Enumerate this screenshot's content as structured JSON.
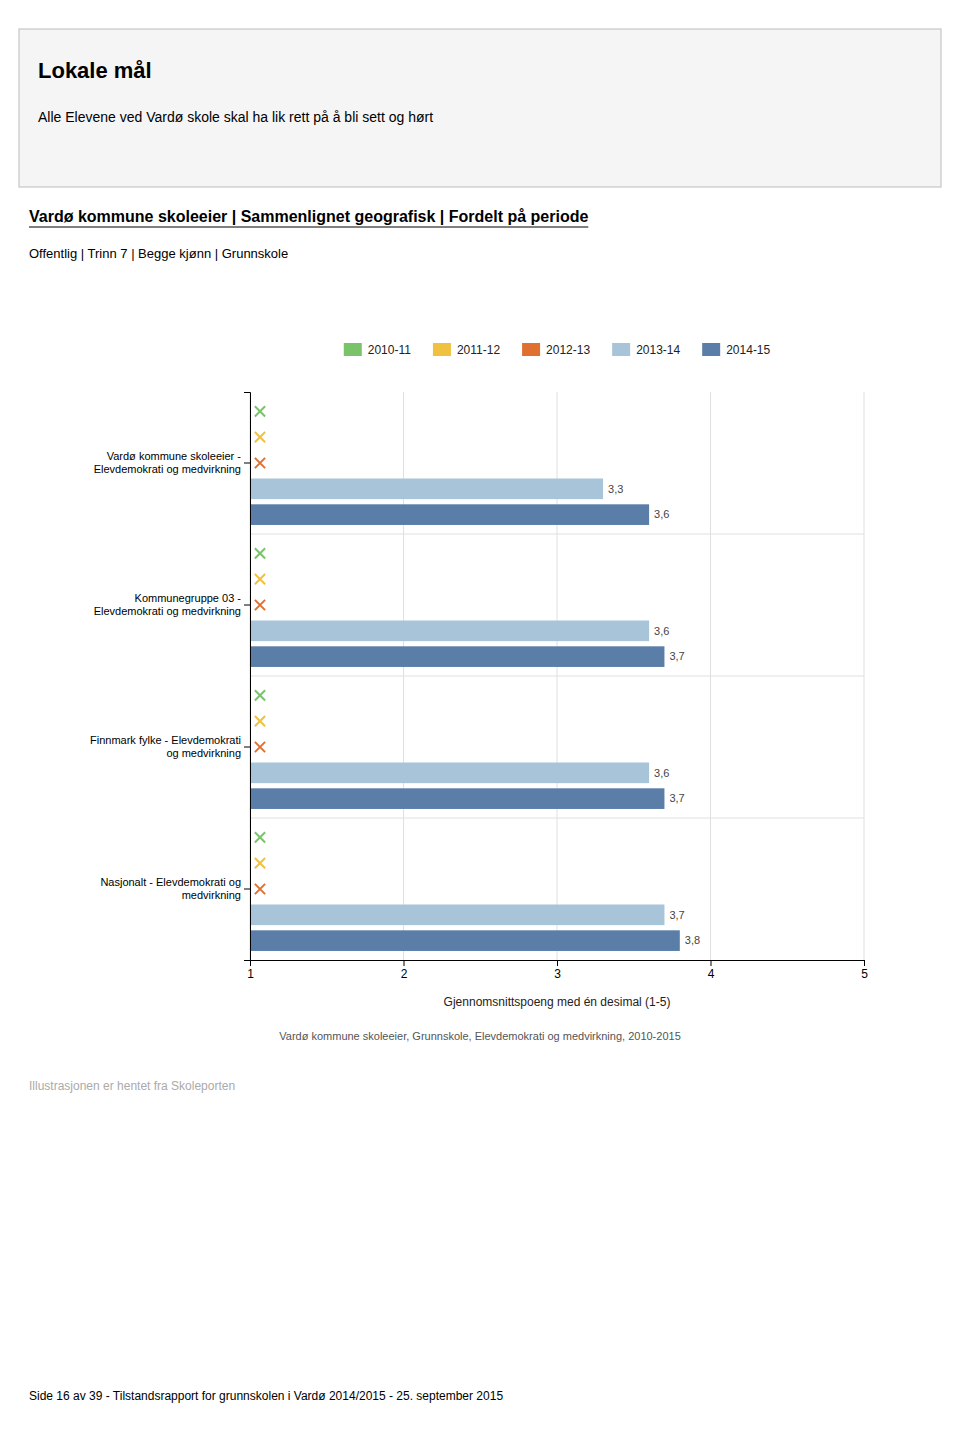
{
  "header": {
    "title": "Lokale mål",
    "subtitle": "Alle Elevene ved Vardø skole skal ha lik rett på å bli sett og hørt"
  },
  "chart_data": {
    "type": "bar",
    "orientation": "horizontal",
    "title": "Vardø kommune skoleeier | Sammenlignet geografisk | Fordelt på periode",
    "subtitle": "Offentlig | Trinn 7 | Begge kjønn | Grunnskole",
    "categories": [
      "Vardø kommune skoleeier -\nElevdemokrati og medvirkning",
      "Kommunegruppe 03 -\nElevdemokrati og medvirkning",
      "Finnmark fylke - Elevdemokrati\nog medvirkning",
      "Nasjonalt - Elevdemokrati og\nmedvirkning"
    ],
    "series": [
      {
        "name": "2010-11",
        "color": "#7AC36A",
        "marker": "x",
        "values": [
          null,
          null,
          null,
          null
        ]
      },
      {
        "name": "2011-12",
        "color": "#F0C040",
        "marker": "x",
        "values": [
          null,
          null,
          null,
          null
        ]
      },
      {
        "name": "2012-13",
        "color": "#E07030",
        "marker": "x",
        "values": [
          null,
          null,
          null,
          null
        ]
      },
      {
        "name": "2013-14",
        "color": "#A8C4D8",
        "values": [
          3.3,
          3.6,
          3.6,
          3.7
        ],
        "value_labels": [
          "3,3",
          "3,6",
          "3,6",
          "3,7"
        ]
      },
      {
        "name": "2014-15",
        "color": "#5A7EA8",
        "values": [
          3.6,
          3.7,
          3.7,
          3.8
        ],
        "value_labels": [
          "3,6",
          "3,7",
          "3,7",
          "3,8"
        ]
      }
    ],
    "xlim": [
      1,
      5
    ],
    "xticks": [
      1,
      2,
      3,
      4,
      5
    ],
    "xlabel": "Gjennomsnittspoeng med én desimal (1-5)",
    "grid": true,
    "data_labels": true,
    "legend": "top",
    "annotations": [
      "Vardø kommune skoleeier, Grunnskole, Elevdemokrati og medvirkning, 2010-2015",
      "Illustrasjonen er hentet fra Skoleporten"
    ]
  },
  "page_footer": "Side 16 av 39 - Tilstandsrapport for grunnskolen i Vardø 2014/2015 - 25. september 2015"
}
